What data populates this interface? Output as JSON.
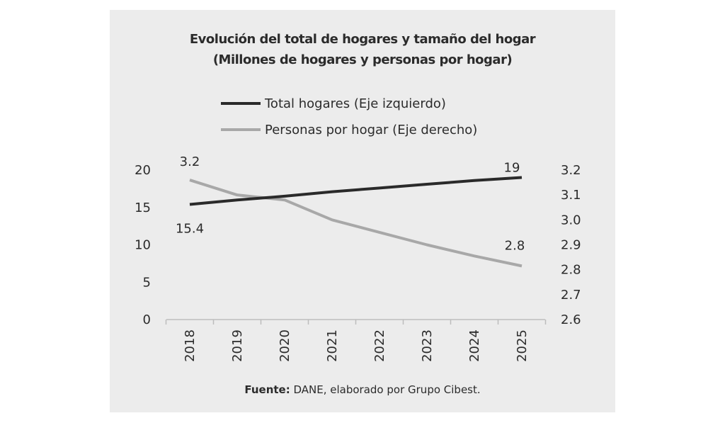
{
  "chart_data": {
    "type": "line",
    "title": "Evolución del total de hogares y tamaño del hogar",
    "subtitle": "(Millones de hogares y personas por hogar)",
    "categories": [
      "2018",
      "2019",
      "2020",
      "2021",
      "2022",
      "2023",
      "2024",
      "2025"
    ],
    "series": [
      {
        "name": "Total hogares (Eje izquierdo)",
        "axis": "left",
        "color": "#2a2a2a",
        "values": [
          15.4,
          16.0,
          16.5,
          17.1,
          17.6,
          18.1,
          18.6,
          19.0
        ],
        "labels": {
          "first": "15.4",
          "last": "19"
        }
      },
      {
        "name": "Personas por hogar (Eje derecho)",
        "axis": "right",
        "color": "#a8a8a8",
        "values": [
          3.16,
          3.1,
          3.08,
          3.0,
          2.95,
          2.9,
          2.855,
          2.815
        ],
        "labels": {
          "first": "3.2",
          "last": "2.8"
        }
      }
    ],
    "y_left": {
      "min": 0,
      "max": 20,
      "ticks": [
        "0",
        "5",
        "10",
        "15",
        "20"
      ]
    },
    "y_right": {
      "min": 2.6,
      "max": 3.2,
      "ticks": [
        "2.6",
        "2.7",
        "2.8",
        "2.9",
        "3.0",
        "3.1",
        "3.2"
      ]
    },
    "grid": false,
    "legend_position": "top",
    "source_label": "Fuente:",
    "source_text": " DANE, elaborado por Grupo Cibest."
  }
}
